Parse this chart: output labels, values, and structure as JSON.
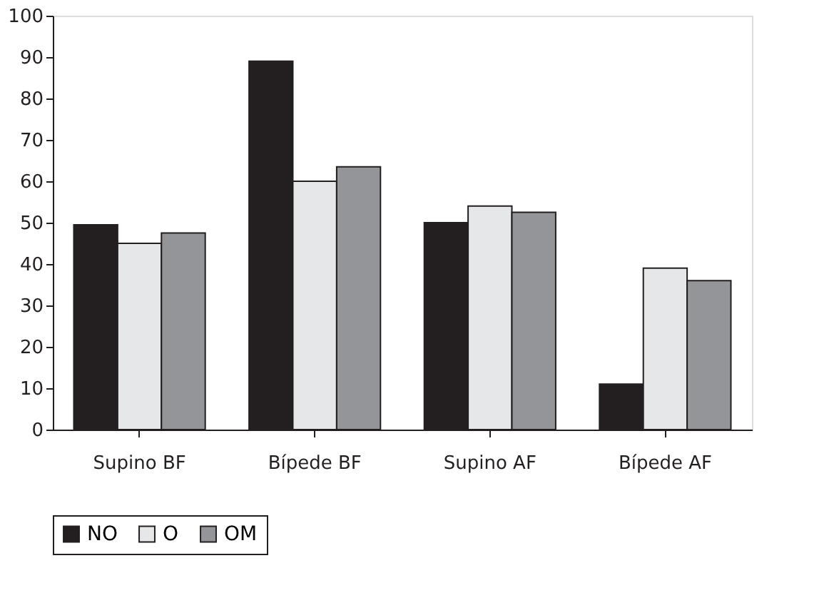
{
  "chart_data": {
    "type": "bar",
    "categories": [
      "Supino BF",
      "Bípede BF",
      "Supino AF",
      "Bípede AF"
    ],
    "series": [
      {
        "name": "NO",
        "color": "#231f20",
        "values": [
          49.5,
          89,
          50,
          11
        ]
      },
      {
        "name": "O",
        "color": "#e6e7e8",
        "values": [
          45,
          60,
          54,
          39
        ]
      },
      {
        "name": "OM",
        "color": "#939598",
        "values": [
          47.5,
          63.5,
          52.5,
          36
        ]
      }
    ],
    "ylim": [
      0,
      100
    ],
    "yticks": [
      0,
      10,
      20,
      30,
      40,
      50,
      60,
      70,
      80,
      90,
      100
    ],
    "grid": false,
    "legend": "bottom"
  }
}
